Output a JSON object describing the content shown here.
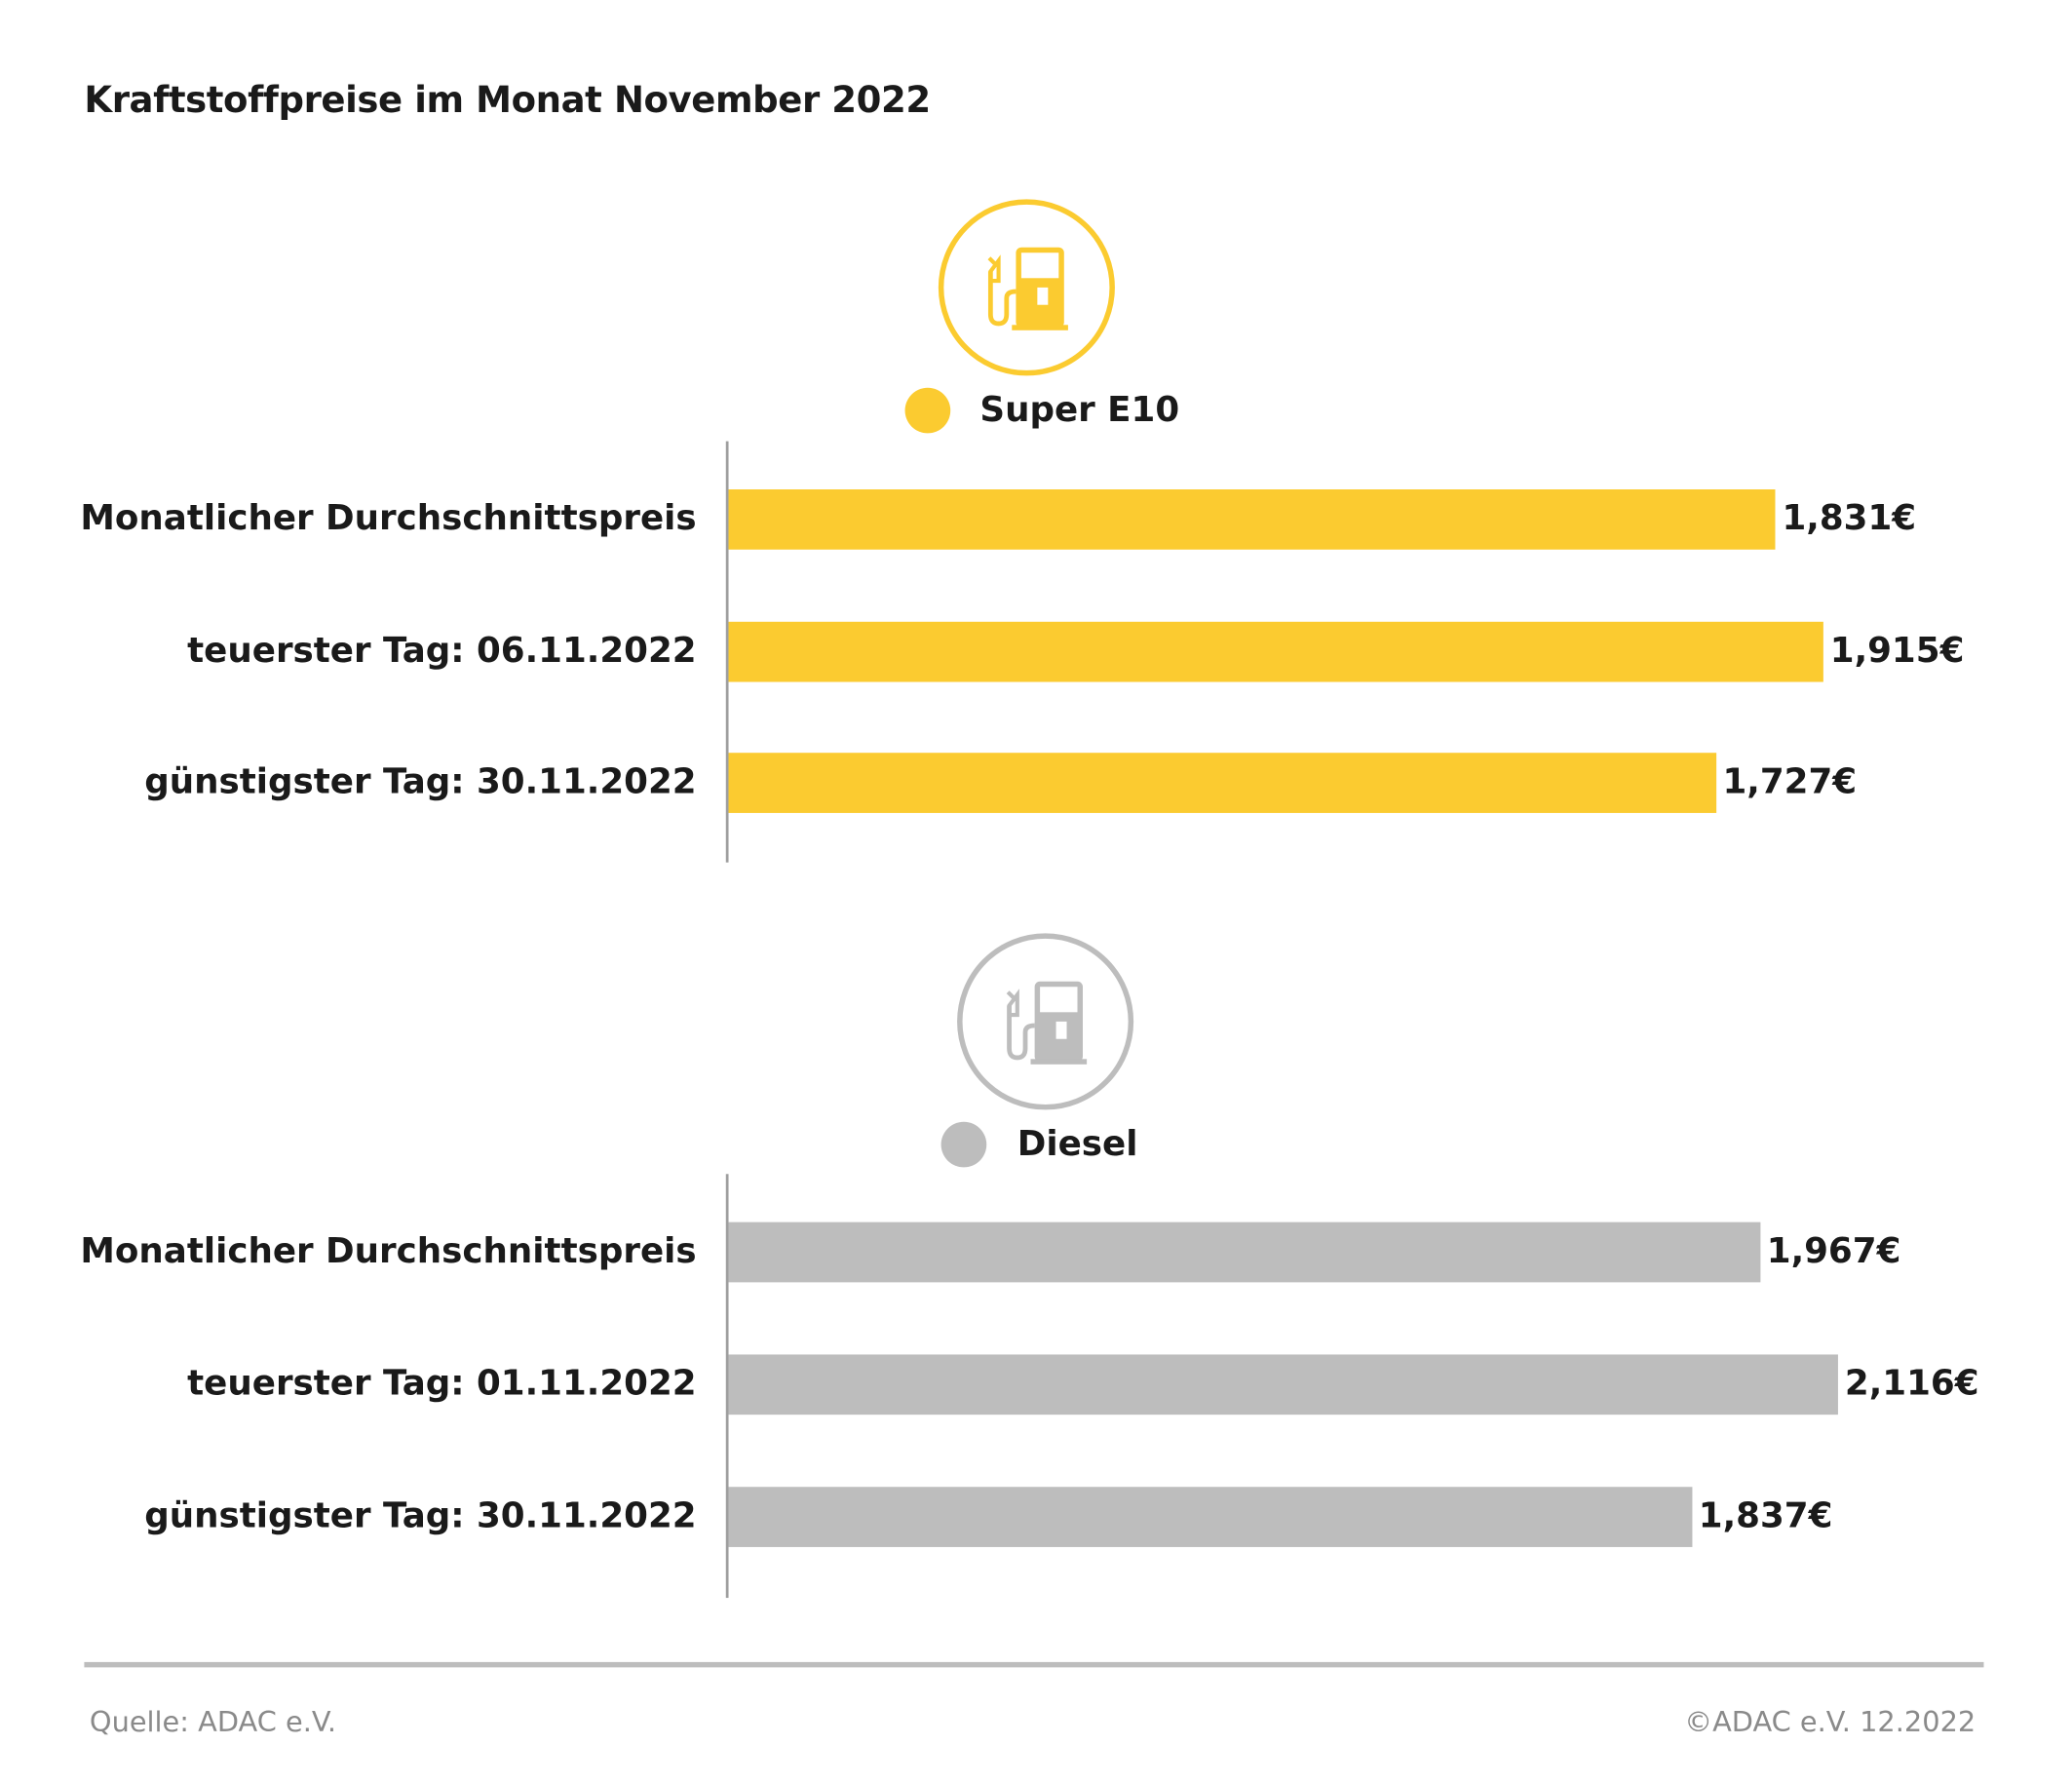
{
  "title": "Kraftstoffpreise im Monat November 2022",
  "colors": {
    "super_e10": "#FBCB30",
    "diesel": "#BDBDBD"
  },
  "icons": {
    "fuel": "fuel-pump-icon"
  },
  "chart_data": [
    {
      "type": "bar",
      "orientation": "horizontal",
      "legend": "Super E10",
      "color": "#FBCB30",
      "categories": [
        "Monatlicher Durchschnittspreis",
        "teuerster Tag: 06.11.2022",
        "günstigster Tag: 30.11.2022"
      ],
      "values": [
        1.831,
        1.915,
        1.727
      ],
      "data_labels": [
        "1,831€",
        "1,915€",
        "1,727€"
      ],
      "grid": false
    },
    {
      "type": "bar",
      "orientation": "horizontal",
      "legend": "Diesel",
      "color": "#BDBDBD",
      "categories": [
        "Monatlicher Durchschnittspreis",
        "teuerster Tag: 01.11.2022",
        "günstigster Tag: 30.11.2022"
      ],
      "values": [
        1.967,
        2.116,
        1.837
      ],
      "data_labels": [
        "1,967€",
        "2,116€",
        "1,837€"
      ],
      "grid": false
    }
  ],
  "footer": {
    "source": "Quelle: ADAC e.V.",
    "copyright": "©ADAC e.V. 12.2022"
  }
}
